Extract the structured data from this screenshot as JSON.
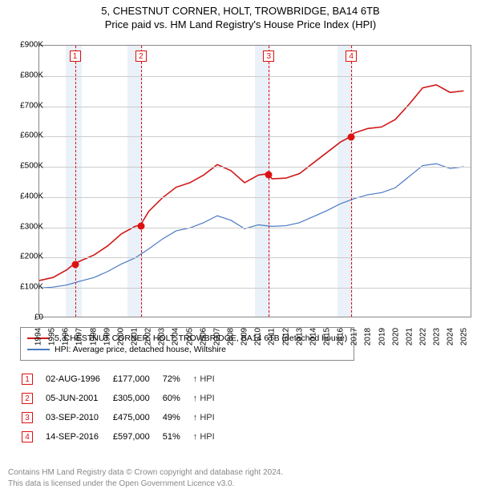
{
  "title_main": "5, CHESTNUT CORNER, HOLT, TROWBRIDGE, BA14 6TB",
  "title_sub": "Price paid vs. HM Land Registry's House Price Index (HPI)",
  "chart": {
    "type": "line",
    "x_years": [
      1994,
      1995,
      1996,
      1997,
      1998,
      1999,
      2000,
      2001,
      2002,
      2003,
      2004,
      2005,
      2006,
      2007,
      2008,
      2009,
      2010,
      2011,
      2012,
      2013,
      2014,
      2015,
      2016,
      2017,
      2018,
      2019,
      2020,
      2021,
      2022,
      2023,
      2024,
      2025
    ],
    "xlim": [
      1994,
      2025.5
    ],
    "ylim": [
      0,
      900000
    ],
    "ytick_step": 100000,
    "ytick_labels": [
      "£0",
      "£100K",
      "£200K",
      "£300K",
      "£400K",
      "£500K",
      "£600K",
      "£700K",
      "£800K",
      "£900K"
    ],
    "grid_color": "#cccccc",
    "background": "#ffffff",
    "shade_color": "#eaf1f8",
    "shade_ranges": [
      [
        1995.9,
        1997.1
      ],
      [
        2000.4,
        2001.5
      ],
      [
        2009.7,
        2010.8
      ],
      [
        2015.7,
        2016.8
      ]
    ],
    "marker_line_color": "#dd1111",
    "markers": [
      {
        "n": "1",
        "year": 1996.6,
        "price": 177000
      },
      {
        "n": "2",
        "year": 2001.4,
        "price": 305000
      },
      {
        "n": "3",
        "year": 2010.7,
        "price": 475000
      },
      {
        "n": "4",
        "year": 2016.7,
        "price": 597000
      }
    ],
    "series": [
      {
        "name": "price_paid",
        "label": "5, CHESTNUT CORNER, HOLT, TROWBRIDGE, BA14 6TB (detached house)",
        "color": "#d01818",
        "line_width": 1.6,
        "points": [
          [
            1994,
            120000
          ],
          [
            1995,
            130000
          ],
          [
            1996,
            155000
          ],
          [
            1996.6,
            177000
          ],
          [
            1997,
            185000
          ],
          [
            1998,
            205000
          ],
          [
            1999,
            235000
          ],
          [
            2000,
            275000
          ],
          [
            2001,
            300000
          ],
          [
            2001.4,
            305000
          ],
          [
            2002,
            350000
          ],
          [
            2003,
            395000
          ],
          [
            2004,
            430000
          ],
          [
            2005,
            445000
          ],
          [
            2006,
            470000
          ],
          [
            2007,
            505000
          ],
          [
            2008,
            485000
          ],
          [
            2009,
            445000
          ],
          [
            2010,
            470000
          ],
          [
            2010.7,
            475000
          ],
          [
            2011,
            458000
          ],
          [
            2012,
            460000
          ],
          [
            2013,
            475000
          ],
          [
            2014,
            510000
          ],
          [
            2015,
            545000
          ],
          [
            2016,
            580000
          ],
          [
            2016.7,
            597000
          ],
          [
            2017,
            610000
          ],
          [
            2018,
            625000
          ],
          [
            2019,
            630000
          ],
          [
            2020,
            655000
          ],
          [
            2021,
            705000
          ],
          [
            2022,
            760000
          ],
          [
            2023,
            770000
          ],
          [
            2024,
            745000
          ],
          [
            2025,
            750000
          ]
        ]
      },
      {
        "name": "hpi",
        "label": "HPI: Average price, detached house, Wiltshire",
        "color": "#4a78c4",
        "line_width": 1.2,
        "points": [
          [
            1994,
            95000
          ],
          [
            1995,
            98000
          ],
          [
            1996,
            105000
          ],
          [
            1997,
            118000
          ],
          [
            1998,
            130000
          ],
          [
            1999,
            150000
          ],
          [
            2000,
            175000
          ],
          [
            2001,
            195000
          ],
          [
            2002,
            225000
          ],
          [
            2003,
            258000
          ],
          [
            2004,
            285000
          ],
          [
            2005,
            295000
          ],
          [
            2006,
            312000
          ],
          [
            2007,
            335000
          ],
          [
            2008,
            320000
          ],
          [
            2009,
            292000
          ],
          [
            2010,
            305000
          ],
          [
            2011,
            300000
          ],
          [
            2012,
            302000
          ],
          [
            2013,
            312000
          ],
          [
            2014,
            332000
          ],
          [
            2015,
            352000
          ],
          [
            2016,
            375000
          ],
          [
            2017,
            392000
          ],
          [
            2018,
            405000
          ],
          [
            2019,
            412000
          ],
          [
            2020,
            428000
          ],
          [
            2021,
            465000
          ],
          [
            2022,
            502000
          ],
          [
            2023,
            508000
          ],
          [
            2024,
            492000
          ],
          [
            2025,
            498000
          ]
        ]
      }
    ]
  },
  "legend": {
    "items": [
      {
        "color": "#d01818",
        "label": "5, CHESTNUT CORNER, HOLT, TROWBRIDGE, BA14 6TB (detached house)"
      },
      {
        "color": "#4a78c4",
        "label": "HPI: Average price, detached house, Wiltshire"
      }
    ]
  },
  "events": [
    {
      "n": "1",
      "date": "02-AUG-1996",
      "price": "£177,000",
      "pct": "72%",
      "note": "↑ HPI"
    },
    {
      "n": "2",
      "date": "05-JUN-2001",
      "price": "£305,000",
      "pct": "60%",
      "note": "↑ HPI"
    },
    {
      "n": "3",
      "date": "03-SEP-2010",
      "price": "£475,000",
      "pct": "49%",
      "note": "↑ HPI"
    },
    {
      "n": "4",
      "date": "14-SEP-2016",
      "price": "£597,000",
      "pct": "51%",
      "note": "↑ HPI"
    }
  ],
  "footer_line1": "Contains HM Land Registry data © Crown copyright and database right 2024.",
  "footer_line2": "This data is licensed under the Open Government Licence v3.0."
}
